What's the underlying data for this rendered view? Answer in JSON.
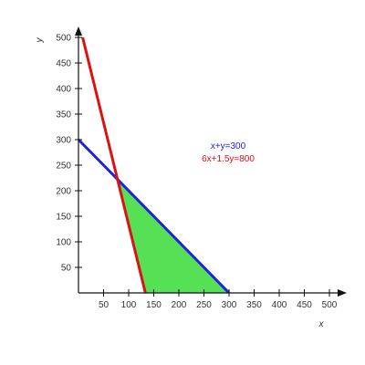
{
  "chart_data": {
    "type": "line",
    "xlabel": "x",
    "ylabel": "y",
    "xlim": [
      0,
      500
    ],
    "ylim": [
      0,
      500
    ],
    "x_ticks": [
      50,
      100,
      150,
      200,
      250,
      300,
      350,
      400,
      450,
      500
    ],
    "y_ticks": [
      50,
      100,
      150,
      200,
      250,
      300,
      350,
      400,
      450,
      500
    ],
    "grid": false,
    "series": [
      {
        "name": "x+y=300",
        "color": "#2222dd",
        "x": [
          0,
          300
        ],
        "y": [
          300,
          0
        ]
      },
      {
        "name": "6x+1.5y=800",
        "color": "#dd1111",
        "x": [
          0,
          133.33
        ],
        "y": [
          533.33,
          0
        ]
      }
    ],
    "feasible_region": {
      "color": "#55e055",
      "vertices": [
        [
          77.78,
          222.22
        ],
        [
          300,
          0
        ],
        [
          133.33,
          0
        ]
      ]
    },
    "legend": {
      "placement": "right",
      "entries": [
        {
          "text": "x+y=300",
          "color": "#2222dd"
        },
        {
          "text": "6x+1.5y=800",
          "color": "#dd1111"
        }
      ]
    }
  }
}
